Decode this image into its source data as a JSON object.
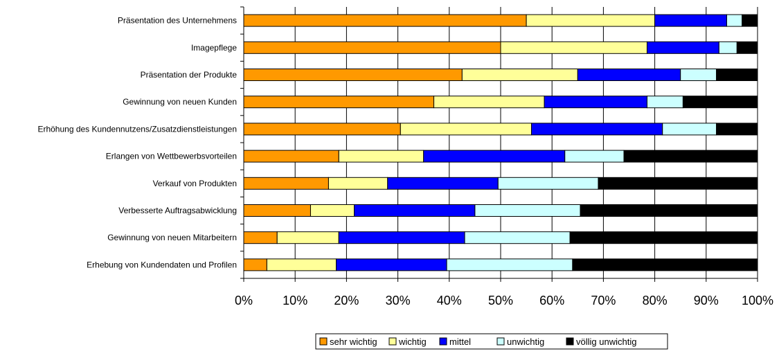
{
  "chart_data": {
    "type": "bar",
    "orientation": "horizontal",
    "stacked": "percent",
    "title": "",
    "xlabel": "",
    "ylabel": "",
    "xlim": [
      0,
      100
    ],
    "x_ticks": [
      "0%",
      "10%",
      "20%",
      "30%",
      "40%",
      "50%",
      "60%",
      "70%",
      "80%",
      "90%",
      "100%"
    ],
    "grid": "vertical",
    "legend_position": "bottom-right",
    "categories": [
      "Präsentation des Unternehmens",
      "Imagepflege",
      "Präsentation der Produkte",
      "Gewinnung von neuen Kunden",
      "Erhöhung des Kundennutzens/Zusatzdienstleistungen",
      "Erlangen von Wettbewerbsvorteilen",
      "Verkauf von Produkten",
      "Verbesserte Auftragsabwicklung",
      "Gewinnung von neuen Mitarbeitern",
      "Erhebung von Kundendaten und Profilen"
    ],
    "series": [
      {
        "name": "sehr wichtig",
        "color": "#FF9900",
        "values": [
          55,
          50,
          42.5,
          37,
          30.5,
          18.5,
          16.5,
          13,
          6.5,
          4.5
        ]
      },
      {
        "name": "wichtig",
        "color": "#FFFF99",
        "values": [
          25,
          28.5,
          22.5,
          21.5,
          25.5,
          16.5,
          11.5,
          8.5,
          12,
          13.5
        ]
      },
      {
        "name": "mittel",
        "color": "#0000FF",
        "values": [
          14,
          14,
          20,
          20,
          25.5,
          27.5,
          21.5,
          23.5,
          24.5,
          21.5
        ]
      },
      {
        "name": "unwichtig",
        "color": "#CCFFFF",
        "values": [
          3,
          3.5,
          7,
          7,
          10.5,
          11.5,
          19.5,
          20.5,
          20.5,
          24.5
        ]
      },
      {
        "name": "völlig unwichtig",
        "color": "#000000",
        "values": [
          3,
          4,
          8,
          14.5,
          8,
          26,
          31,
          34.5,
          36.5,
          36
        ]
      }
    ]
  }
}
